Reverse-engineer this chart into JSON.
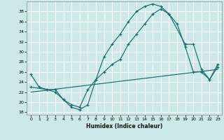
{
  "xlabel": "Humidex (Indice chaleur)",
  "bg_color": "#cce8e8",
  "line_color": "#1a6b6b",
  "grid_color": "#ffffff",
  "xlim": [
    -0.5,
    23.5
  ],
  "ylim": [
    17.5,
    40
  ],
  "yticks": [
    18,
    20,
    22,
    24,
    26,
    28,
    30,
    32,
    34,
    36,
    38
  ],
  "xticks": [
    0,
    1,
    2,
    3,
    4,
    5,
    6,
    7,
    8,
    9,
    10,
    11,
    12,
    13,
    14,
    15,
    16,
    17,
    18,
    19,
    20,
    21,
    22,
    23
  ],
  "line1_x": [
    0,
    1,
    2,
    3,
    4,
    5,
    6,
    7,
    8,
    9,
    10,
    11,
    12,
    13,
    14,
    15,
    16,
    17,
    18,
    19,
    20,
    21,
    22,
    23
  ],
  "line1_y": [
    25.5,
    23.0,
    22.5,
    22.5,
    20.5,
    19.0,
    18.5,
    19.5,
    24.5,
    29.0,
    31.5,
    33.5,
    36.0,
    38.0,
    39.0,
    39.5,
    39.0,
    37.5,
    35.5,
    31.0,
    26.0,
    26.0,
    24.5,
    27.0
  ],
  "line2_x": [
    0,
    2,
    3,
    4,
    5,
    6,
    7,
    8,
    9,
    10,
    11,
    12,
    13,
    14,
    15,
    16,
    17,
    19,
    20,
    21,
    22,
    23
  ],
  "line2_y": [
    23.0,
    22.5,
    22.0,
    20.5,
    19.5,
    19.0,
    22.5,
    24.5,
    26.0,
    27.5,
    28.5,
    31.5,
    33.5,
    35.5,
    37.5,
    38.5,
    37.5,
    31.5,
    31.5,
    26.5,
    24.5,
    27.5
  ],
  "line3_x": [
    0,
    23
  ],
  "line3_y": [
    22.0,
    26.5
  ]
}
